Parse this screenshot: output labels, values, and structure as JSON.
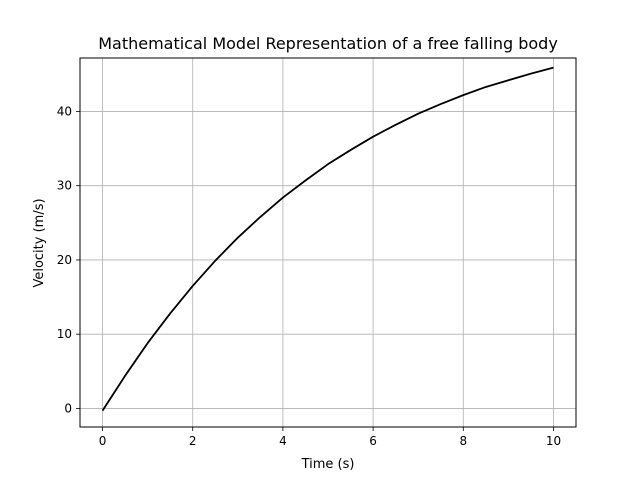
{
  "chart_data": {
    "type": "line",
    "title": "Mathematical Model Representation of a free falling body",
    "xlabel": "Time (s)",
    "ylabel": "Velocity (m/s)",
    "xlim": [
      -0.5,
      10.5
    ],
    "ylim": [
      -2.5,
      47.2
    ],
    "xticks": [
      0,
      2,
      4,
      6,
      8,
      10
    ],
    "yticks": [
      0,
      10,
      20,
      30,
      40
    ],
    "grid": true,
    "line_color": "#000000",
    "grid_color": "#b0b0b0",
    "series": [
      {
        "x": [
          0,
          0.5,
          1,
          1.5,
          2,
          2.5,
          3,
          3.5,
          4,
          4.5,
          5,
          5.5,
          6,
          6.5,
          7,
          7.5,
          8,
          8.5,
          9,
          9.5,
          10
        ],
        "values": [
          -0.3,
          4.4,
          8.8,
          12.8,
          16.5,
          19.9,
          23.0,
          25.8,
          28.4,
          30.7,
          32.9,
          34.8,
          36.6,
          38.2,
          39.7,
          41.0,
          42.2,
          43.3,
          44.2,
          45.1,
          45.9
        ]
      }
    ]
  }
}
